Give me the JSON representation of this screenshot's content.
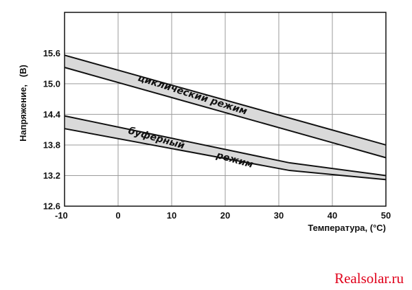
{
  "chart_data": {
    "type": "area",
    "xlabel": "Температура, (°С)",
    "ylabel": "Напряжение,   (В)",
    "xlim": [
      -10,
      50
    ],
    "ylim": [
      12.6,
      16.4
    ],
    "x_ticks": [
      "-10",
      "0",
      "10",
      "20",
      "30",
      "40",
      "50"
    ],
    "y_ticks": [
      "12.6",
      "13.2",
      "13.8",
      "14.4",
      "15.0",
      "15.6"
    ],
    "grid": true,
    "band_fill": "#d9d9d9",
    "series": [
      {
        "name": "циклический режим",
        "upper": [
          {
            "x": -10,
            "y": 15.56
          },
          {
            "x": 50,
            "y": 13.8
          }
        ],
        "lower": [
          {
            "x": -10,
            "y": 15.32
          },
          {
            "x": 50,
            "y": 13.55
          }
        ]
      },
      {
        "name": "буферный режим",
        "upper": [
          {
            "x": -10,
            "y": 14.37
          },
          {
            "x": 32,
            "y": 13.45
          },
          {
            "x": 50,
            "y": 13.2
          }
        ],
        "lower": [
          {
            "x": -10,
            "y": 14.12
          },
          {
            "x": 32,
            "y": 13.3
          },
          {
            "x": 50,
            "y": 13.12
          }
        ]
      }
    ]
  },
  "watermark": "Realsolar.ru"
}
